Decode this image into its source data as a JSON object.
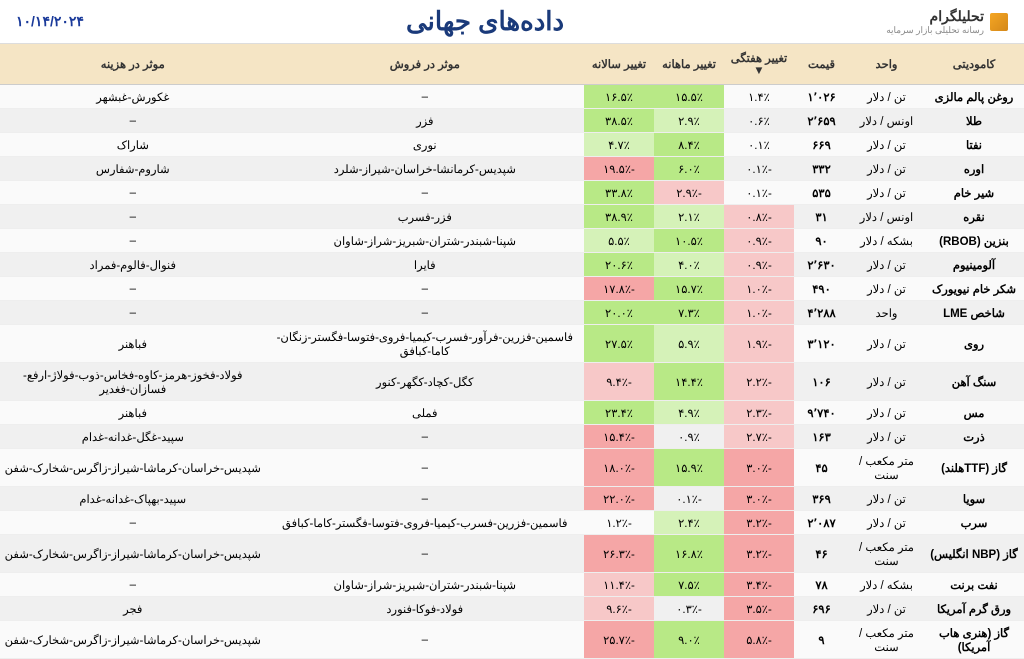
{
  "header": {
    "logo_text": "تحلیلگرام",
    "logo_sub": "رسانه تحلیلی بازار سرمایه",
    "title": "داده‌های جهانی",
    "date": "۱۰/۱۴/۲۰۲۴"
  },
  "columns": {
    "commodity": "کامودیتی",
    "unit": "واحد",
    "price": "قیمت",
    "weekly": "تغییر هفتگی",
    "monthly": "تغییر ماهانه",
    "yearly": "تغییر سالانه",
    "sell_eff": "موثر در فروش",
    "cost_eff": "موثر در هزینه"
  },
  "rows": [
    {
      "commodity": "روغن پالم مالزی",
      "unit": "تن / دلار",
      "price": "۱٬۰۲۶",
      "wk": "۱.۴٪",
      "wk_c": "",
      "mo": "۱۵.۵٪",
      "mo_c": "pos",
      "yr": "۱۶.۵٪",
      "yr_c": "pos",
      "sell": "–",
      "cost": "غکورش-غبشهر"
    },
    {
      "commodity": "طلا",
      "unit": "اونس / دلار",
      "price": "۲٬۶۵۹",
      "wk": "۰.۶٪",
      "wk_c": "",
      "mo": "۲.۹٪",
      "mo_c": "pos-light",
      "yr": "۳۸.۵٪",
      "yr_c": "pos",
      "sell": "فزر",
      "cost": "–"
    },
    {
      "commodity": "نفتا",
      "unit": "تن / دلار",
      "price": "۶۶۹",
      "wk": "۰.۱٪",
      "wk_c": "",
      "mo": "۸.۴٪",
      "mo_c": "pos",
      "yr": "۴.۷٪",
      "yr_c": "pos-light",
      "sell": "نوری",
      "cost": "شاراک"
    },
    {
      "commodity": "اوره",
      "unit": "تن / دلار",
      "price": "۳۳۲",
      "wk": "-۰.۱٪",
      "wk_c": "",
      "mo": "۶.۰٪",
      "mo_c": "pos",
      "yr": "-۱۹.۵٪",
      "yr_c": "neg",
      "sell": "شپدیس-کرمانشا-خراسان-شیراز-شلرد",
      "cost": "شاروم-شفارس"
    },
    {
      "commodity": "شیر خام",
      "unit": "تن / دلار",
      "price": "۵۳۵",
      "wk": "-۰.۱٪",
      "wk_c": "",
      "mo": "-۲.۹٪",
      "mo_c": "neg-light",
      "yr": "۳۳.۸٪",
      "yr_c": "pos",
      "sell": "–",
      "cost": "–"
    },
    {
      "commodity": "نقره",
      "unit": "اونس / دلار",
      "price": "۳۱",
      "wk": "-۰.۸٪",
      "wk_c": "neg-light",
      "mo": "۲.۱٪",
      "mo_c": "pos-light",
      "yr": "۳۸.۹٪",
      "yr_c": "pos",
      "sell": "فزر-فسرب",
      "cost": "–"
    },
    {
      "commodity": "بنزین (RBOB)",
      "unit": "بشکه / دلار",
      "price": "۹۰",
      "wk": "-۰.۹٪",
      "wk_c": "neg-light",
      "mo": "۱۰.۵٪",
      "mo_c": "pos",
      "yr": "۵.۵٪",
      "yr_c": "pos-light",
      "sell": "شپنا-شبندر-شتران-شبریز-شراز-شاوان",
      "cost": "–"
    },
    {
      "commodity": "آلومینیوم",
      "unit": "تن / دلار",
      "price": "۲٬۶۳۰",
      "wk": "-۰.۹٪",
      "wk_c": "neg-light",
      "mo": "۴.۰٪",
      "mo_c": "pos-light",
      "yr": "۲۰.۶٪",
      "yr_c": "pos",
      "sell": "فایرا",
      "cost": "فنوال-فالوم-فمراد"
    },
    {
      "commodity": "شکر خام نیویورک",
      "unit": "تن / دلار",
      "price": "۴۹۰",
      "wk": "-۱.۰٪",
      "wk_c": "neg-light",
      "mo": "۱۵.۷٪",
      "mo_c": "pos",
      "yr": "-۱۷.۸٪",
      "yr_c": "neg",
      "sell": "–",
      "cost": "–"
    },
    {
      "commodity": "شاخص LME",
      "unit": "واحد",
      "price": "۴٬۲۸۸",
      "wk": "-۱.۰٪",
      "wk_c": "neg-light",
      "mo": "۷.۳٪",
      "mo_c": "pos",
      "yr": "۲۰.۰٪",
      "yr_c": "pos",
      "sell": "–",
      "cost": "–"
    },
    {
      "commodity": "روی",
      "unit": "تن / دلار",
      "price": "۳٬۱۲۰",
      "wk": "-۱.۹٪",
      "wk_c": "neg-light",
      "mo": "۵.۹٪",
      "mo_c": "pos-light",
      "yr": "۲۷.۵٪",
      "yr_c": "pos",
      "sell": "فاسمین-فزرین-فرآور-فسرب-کیمیا-فروی-فتوسا-فگستر-زنگان-کاما-کبافق",
      "cost": "فباهنر"
    },
    {
      "commodity": "سنگ آهن",
      "unit": "تن / دلار",
      "price": "۱۰۶",
      "wk": "-۲.۲٪",
      "wk_c": "neg-light",
      "mo": "۱۴.۴٪",
      "mo_c": "pos",
      "yr": "-۹.۴٪",
      "yr_c": "neg-light",
      "sell": "کگل-کچاد-کگهر-کنور",
      "cost": "فولاد-فخوز-هرمز-کاوه-فخاس-ذوب-فولاژ-ارفع-فسازان-فغدیر"
    },
    {
      "commodity": "مس",
      "unit": "تن / دلار",
      "price": "۹٬۷۴۰",
      "wk": "-۲.۳٪",
      "wk_c": "neg-light",
      "mo": "۴.۹٪",
      "mo_c": "pos-light",
      "yr": "۲۳.۴٪",
      "yr_c": "pos",
      "sell": "فملی",
      "cost": "فباهنر"
    },
    {
      "commodity": "ذرت",
      "unit": "تن / دلار",
      "price": "۱۶۳",
      "wk": "-۲.۷٪",
      "wk_c": "neg-light",
      "mo": "۰.۹٪",
      "mo_c": "",
      "yr": "-۱۵.۴٪",
      "yr_c": "neg",
      "sell": "–",
      "cost": "سپید-غگل-غدانه-غدام"
    },
    {
      "commodity": "گاز (TTFهلند)",
      "unit": "متر مکعب / سنت",
      "price": "۴۵",
      "wk": "-۳.۰٪",
      "wk_c": "neg",
      "mo": "۱۵.۹٪",
      "mo_c": "pos",
      "yr": "-۱۸.۰٪",
      "yr_c": "neg",
      "sell": "–",
      "cost": "شپدیس-خراسان-کرماشا-شیراز-زاگرس-شخارک-شفن"
    },
    {
      "commodity": "سویا",
      "unit": "تن / دلار",
      "price": "۳۶۹",
      "wk": "-۳.۰٪",
      "wk_c": "neg",
      "mo": "-۰.۱٪",
      "mo_c": "",
      "yr": "-۲۲.۰٪",
      "yr_c": "neg",
      "sell": "–",
      "cost": "سپید-بهپاک-غدانه-غدام"
    },
    {
      "commodity": "سرب",
      "unit": "تن / دلار",
      "price": "۲٬۰۸۷",
      "wk": "-۳.۲٪",
      "wk_c": "neg",
      "mo": "۲.۴٪",
      "mo_c": "pos-light",
      "yr": "-۱.۲٪",
      "yr_c": "",
      "sell": "فاسمین-فزرین-فسرب-کیمیا-فروی-فتوسا-فگستر-کاما-کبافق",
      "cost": "–"
    },
    {
      "commodity": "گاز (NBP انگلیس)",
      "unit": "متر مکعب / سنت",
      "price": "۴۶",
      "wk": "-۳.۲٪",
      "wk_c": "neg",
      "mo": "۱۶.۸٪",
      "mo_c": "pos",
      "yr": "-۲۶.۳٪",
      "yr_c": "neg",
      "sell": "–",
      "cost": "شپدیس-خراسان-کرماشا-شیراز-زاگرس-شخارک-شفن"
    },
    {
      "commodity": "نفت برنت",
      "unit": "بشکه / دلار",
      "price": "۷۸",
      "wk": "-۳.۴٪",
      "wk_c": "neg",
      "mo": "۷.۵٪",
      "mo_c": "pos",
      "yr": "-۱۱.۴٪",
      "yr_c": "neg-light",
      "sell": "شپنا-شبندر-شتران-شبریز-شراز-شاوان",
      "cost": "–"
    },
    {
      "commodity": "ورق گرم آمریکا",
      "unit": "تن / دلار",
      "price": "۶۹۶",
      "wk": "-۳.۵٪",
      "wk_c": "neg",
      "mo": "-۰.۳٪",
      "mo_c": "",
      "yr": "-۹.۶٪",
      "yr_c": "neg-light",
      "sell": "فولاد-فوکا-فنورد",
      "cost": "فجر"
    },
    {
      "commodity": "گاز (هنری هاب آمریکا)",
      "unit": "متر مکعب / سنت",
      "price": "۹",
      "wk": "-۵.۸٪",
      "wk_c": "neg",
      "mo": "۹.۰٪",
      "mo_c": "pos",
      "yr": "-۲۵.۷٪",
      "yr_c": "neg",
      "sell": "–",
      "cost": "شپدیس-خراسان-کرماشا-شیراز-زاگرس-شخارک-شفن"
    }
  ]
}
